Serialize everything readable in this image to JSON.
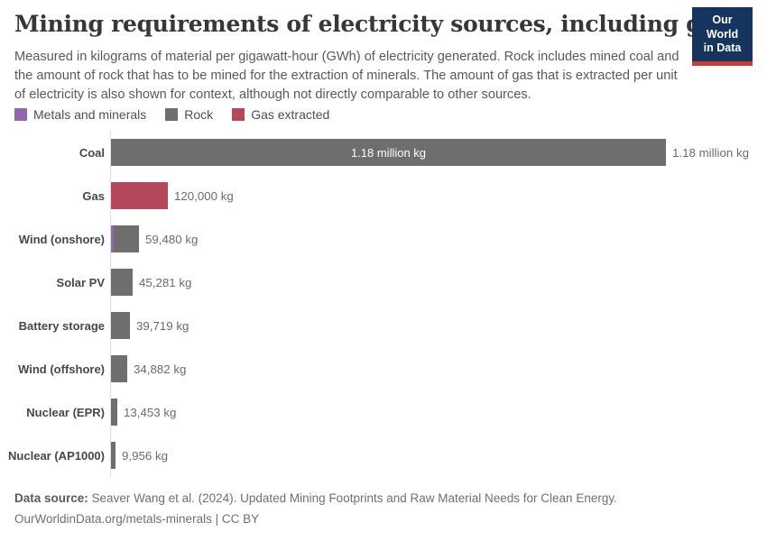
{
  "header": {
    "title": "Mining requirements of electricity sources, including gas",
    "subtitle": "Measured in kilograms of material per gigawatt-hour (GWh) of electricity generated. Rock includes mined coal and the amount of rock that has to be mined for the extraction of minerals. The amount of gas that is extracted per unit of electricity is also shown for context, although not directly comparable to other sources.",
    "logo": {
      "line1": "Our World",
      "line2": "in Data",
      "bg_color": "#16355e",
      "accent_color": "#cc3b33"
    }
  },
  "legend": {
    "items": [
      {
        "label": "Metals and minerals",
        "color": "#9368a9"
      },
      {
        "label": "Rock",
        "color": "#6e6e6e"
      },
      {
        "label": "Gas extracted",
        "color": "#b5495b"
      }
    ]
  },
  "chart_data": {
    "type": "bar",
    "orientation": "horizontal",
    "title": "Mining requirements of electricity sources, including gas",
    "unit": "kg of material per GWh",
    "xlim": [
      0,
      1180000
    ],
    "grid": false,
    "legend_position": "top",
    "series_colors": {
      "Metals and minerals": "#9368a9",
      "Rock": "#6e6e6e",
      "Gas extracted": "#b5495b"
    },
    "rows": [
      {
        "category": "Coal",
        "value": 1180000,
        "value_label": "1.18 million kg",
        "series": "Rock",
        "inside_label": true,
        "metals_sliver": false
      },
      {
        "category": "Gas",
        "value": 120000,
        "value_label": "120,000 kg",
        "series": "Gas extracted",
        "inside_label": false,
        "metals_sliver": false
      },
      {
        "category": "Wind (onshore)",
        "value": 59480,
        "value_label": "59,480 kg",
        "series": "Rock",
        "inside_label": false,
        "metals_sliver": true
      },
      {
        "category": "Solar PV",
        "value": 45281,
        "value_label": "45,281 kg",
        "series": "Rock",
        "inside_label": false,
        "metals_sliver": false
      },
      {
        "category": "Battery storage",
        "value": 39719,
        "value_label": "39,719 kg",
        "series": "Rock",
        "inside_label": false,
        "metals_sliver": false
      },
      {
        "category": "Wind (offshore)",
        "value": 34882,
        "value_label": "34,882 kg",
        "series": "Rock",
        "inside_label": false,
        "metals_sliver": false
      },
      {
        "category": "Nuclear (EPR)",
        "value": 13453,
        "value_label": "13,453 kg",
        "series": "Rock",
        "inside_label": false,
        "metals_sliver": false
      },
      {
        "category": "Nuclear (AP1000)",
        "value": 9956,
        "value_label": "9,956 kg",
        "series": "Rock",
        "inside_label": false,
        "metals_sliver": false
      }
    ]
  },
  "footer": {
    "datasource_label": "Data source:",
    "datasource_text": "Seaver Wang et al. (2024). Updated Mining Footprints and Raw Material Needs for Clean Energy.",
    "license_line": "OurWorldinData.org/metals-minerals | CC BY"
  }
}
